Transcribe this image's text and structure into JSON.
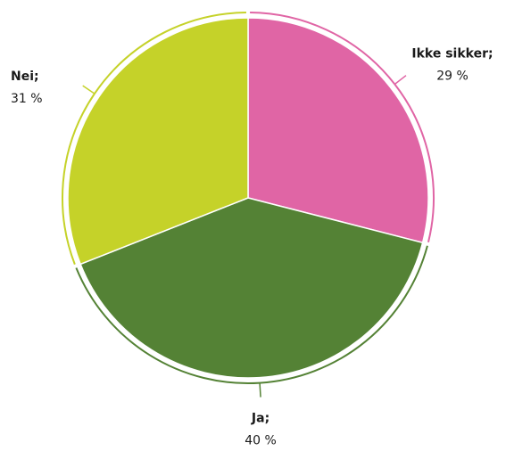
{
  "chart_data": {
    "type": "pie",
    "categories": [
      "Ikke sikker;",
      "Ja;",
      "Nei;"
    ],
    "values": [
      29,
      40,
      31
    ],
    "value_labels": [
      "29 %",
      "40 %",
      "31 %"
    ],
    "colors": [
      "#e065a5",
      "#548235",
      "#c5d229"
    ]
  }
}
